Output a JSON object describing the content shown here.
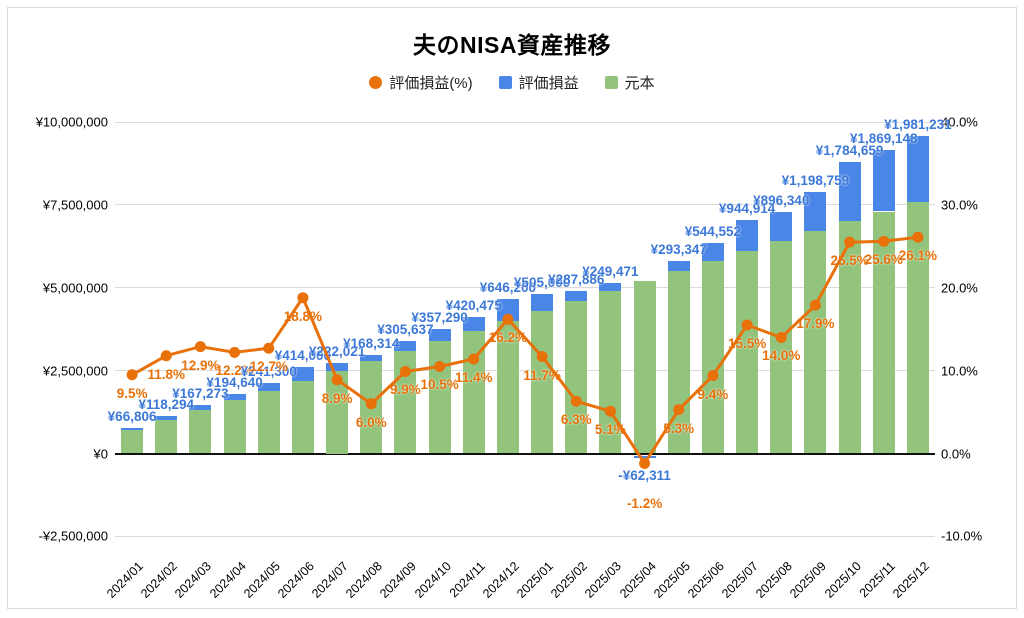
{
  "title": "夫のNISA資産推移",
  "colors": {
    "line": "#e8710a",
    "gain_bar": "#4a86e8",
    "principal_bar": "#93c47d",
    "gain_label_text": "#3c78d8",
    "pct_label_text": "#e8710a",
    "gridline": "#dadada",
    "zero_line": "#111111"
  },
  "legend": [
    {
      "label": "評価損益(%)",
      "color": "#e8710a",
      "shape": "circle"
    },
    {
      "label": "評価損益",
      "color": "#4a86e8",
      "shape": "square"
    },
    {
      "label": "元本",
      "color": "#93c47d",
      "shape": "square"
    }
  ],
  "y_axis_left": {
    "ticks": [
      "¥10,000,000",
      "¥7,500,000",
      "¥5,000,000",
      "¥2,500,000",
      "¥0",
      "-¥2,500,000"
    ],
    "values": [
      10000000,
      7500000,
      5000000,
      2500000,
      0,
      -2500000
    ]
  },
  "y_axis_right": {
    "ticks": [
      "40.0%",
      "30.0%",
      "20.0%",
      "10.0%",
      "0.0%",
      "-10.0%"
    ],
    "values": [
      40,
      30,
      20,
      10,
      0,
      -10
    ]
  },
  "chart_data": {
    "type": "combo-stacked-bar-line",
    "title": "夫のNISA資産推移",
    "categories": [
      "2024/01",
      "2024/02",
      "2024/03",
      "2024/04",
      "2024/05",
      "2024/06",
      "2024/07",
      "2024/08",
      "2024/09",
      "2024/10",
      "2024/11",
      "2024/12",
      "2025/01",
      "2025/02",
      "2025/03",
      "2025/04",
      "2025/05",
      "2025/06",
      "2025/07",
      "2025/08",
      "2025/09",
      "2025/10",
      "2025/11",
      "2025/12"
    ],
    "left_axis_range": [
      -2500000,
      10000000
    ],
    "right_axis_range": [
      -10,
      40
    ],
    "grid": true,
    "legend_position": "top",
    "series": [
      {
        "name": "元本",
        "type": "bar",
        "stack": true,
        "color": "#93c47d",
        "axis": "left",
        "values": [
          700000,
          1000000,
          1300000,
          1600000,
          1900000,
          2200000,
          2500000,
          2800000,
          3100000,
          3400000,
          3700000,
          4000000,
          4300000,
          4600000,
          4900000,
          5200000,
          5500000,
          5800000,
          6100000,
          6400000,
          6700000,
          7000000,
          7300000,
          7600000
        ]
      },
      {
        "name": "評価損益",
        "type": "bar",
        "stack": true,
        "color": "#4a86e8",
        "axis": "left",
        "values": [
          66806,
          118294,
          167273,
          194640,
          241300,
          414000,
          222021,
          168314,
          305637,
          357290,
          420475,
          646200,
          505000,
          287886,
          249471,
          -62311,
          293347,
          544552,
          944914,
          896340,
          1198759,
          1784659,
          1869148,
          1981231
        ],
        "labels": [
          "¥66,806",
          "¥118,294",
          "¥167,273",
          "¥194,640",
          "¥241,300",
          "¥414,000",
          "¥222,021",
          "¥168,314",
          "¥305,637",
          "¥357,290",
          "¥420,475",
          "¥646,200",
          "¥505,000",
          "¥287,886",
          "¥249,471",
          "-¥62,311",
          "¥293,347",
          "¥544,552",
          "¥944,914",
          "¥896,340",
          "¥1,198,759",
          "¥1,784,659",
          "¥1,869,148",
          "¥1,981,231"
        ]
      },
      {
        "name": "評価損益(%)",
        "type": "line",
        "color": "#e8710a",
        "axis": "right",
        "values": [
          9.5,
          11.8,
          12.9,
          12.2,
          12.7,
          18.8,
          8.9,
          6.0,
          9.9,
          10.5,
          11.4,
          16.2,
          11.7,
          6.3,
          5.1,
          -1.2,
          5.3,
          9.4,
          15.5,
          14.0,
          17.9,
          25.5,
          25.6,
          26.1
        ],
        "labels": [
          "9.5%",
          "11.8%",
          "12.9%",
          "12.2%",
          "12.7%",
          "18.8%",
          "8.9%",
          "6.0%",
          "9.9%",
          "10.5%",
          "11.4%",
          "16.2%",
          "11.7%",
          "6.3%",
          "5.1%",
          "-1.2%",
          "5.3%",
          "9.4%",
          "15.5%",
          "14.0%",
          "17.9%",
          "25.5%",
          "25.6%",
          "26.1%"
        ]
      }
    ]
  }
}
